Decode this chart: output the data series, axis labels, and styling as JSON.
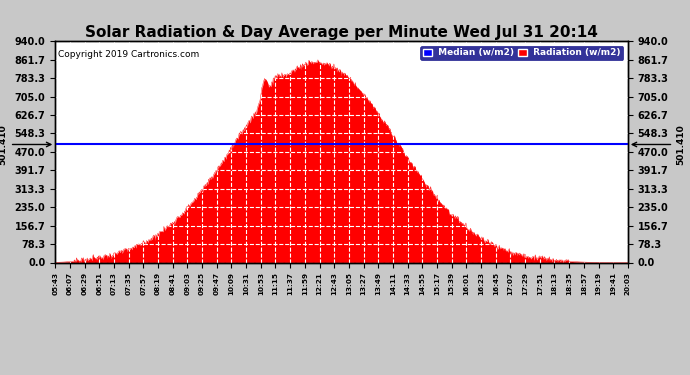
{
  "title": "Solar Radiation & Day Average per Minute Wed Jul 31 20:14",
  "copyright": "Copyright 2019 Cartronics.com",
  "median_value": 501.41,
  "y_ticks": [
    0.0,
    78.3,
    156.7,
    235.0,
    313.3,
    391.7,
    470.0,
    548.3,
    626.7,
    705.0,
    783.3,
    861.7,
    940.0
  ],
  "y_max": 940.0,
  "y_min": 0.0,
  "bg_color": "#c8c8c8",
  "plot_bg_color": "#ffffff",
  "fill_color": "#ff0000",
  "line_color": "#ff0000",
  "median_line_color": "#0000ff",
  "grid_color": "#ffffff",
  "title_fontsize": 11,
  "legend_median_bg": "#0000ff",
  "legend_radiation_bg": "#ff0000",
  "left_annotation": "501.410",
  "right_annotation": "501.410",
  "time_labels": [
    "05:43",
    "06:07",
    "06:29",
    "06:51",
    "07:13",
    "07:35",
    "07:57",
    "08:19",
    "08:41",
    "09:03",
    "09:25",
    "09:47",
    "10:09",
    "10:31",
    "10:53",
    "11:15",
    "11:37",
    "11:59",
    "12:21",
    "12:43",
    "13:05",
    "13:27",
    "13:49",
    "14:11",
    "14:33",
    "14:55",
    "15:17",
    "15:39",
    "16:01",
    "16:23",
    "16:45",
    "17:07",
    "17:29",
    "17:51",
    "18:13",
    "18:35",
    "18:57",
    "19:19",
    "19:41",
    "20:03"
  ]
}
